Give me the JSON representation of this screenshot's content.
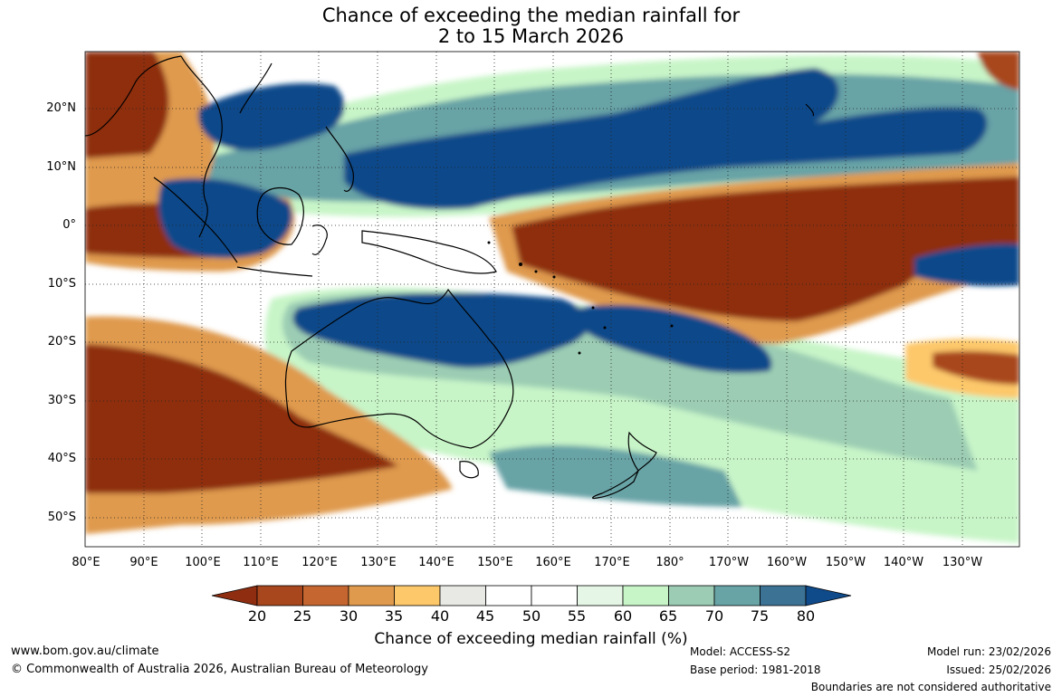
{
  "title": {
    "line1": "Chance of exceeding the median rainfall for",
    "line2": "2 to 15 March 2026"
  },
  "map": {
    "lat_labels": [
      "20°N",
      "10°N",
      "0°",
      "10°S",
      "20°S",
      "30°S",
      "40°S",
      "50°S"
    ],
    "lon_labels": [
      "80°E",
      "90°E",
      "100°E",
      "110°E",
      "120°E",
      "130°E",
      "140°E",
      "150°E",
      "160°E",
      "170°E",
      "180°",
      "170°W",
      "160°W",
      "150°W",
      "140°W",
      "130°W"
    ]
  },
  "colorbar": {
    "ticks": [
      "20",
      "25",
      "30",
      "35",
      "40",
      "45",
      "50",
      "55",
      "60",
      "65",
      "70",
      "75",
      "80"
    ],
    "colors": [
      "#8e2d10",
      "#a8461d",
      "#c56530",
      "#df9a4d",
      "#fdc86a",
      "#e8e8e4",
      "#ffffff",
      "#ffffff",
      "#e6f6e6",
      "#c8f5c8",
      "#9ccdb4",
      "#68a3a6",
      "#3c7294",
      "#0f4a8a"
    ],
    "label": "Chance of exceeding median rainfall (%)"
  },
  "footer": {
    "website": "www.bom.gov.au/climate",
    "copyright": "© Commonwealth of Australia 2026, Australian Bureau of Meteorology",
    "model": "Model: ACCESS-S2",
    "base_period": "Base period: 1981-2018",
    "model_run": "Model run: 23/02/2026",
    "issued": "Issued: 25/02/2026",
    "disclaimer": "Boundaries are not considered authoritative"
  }
}
